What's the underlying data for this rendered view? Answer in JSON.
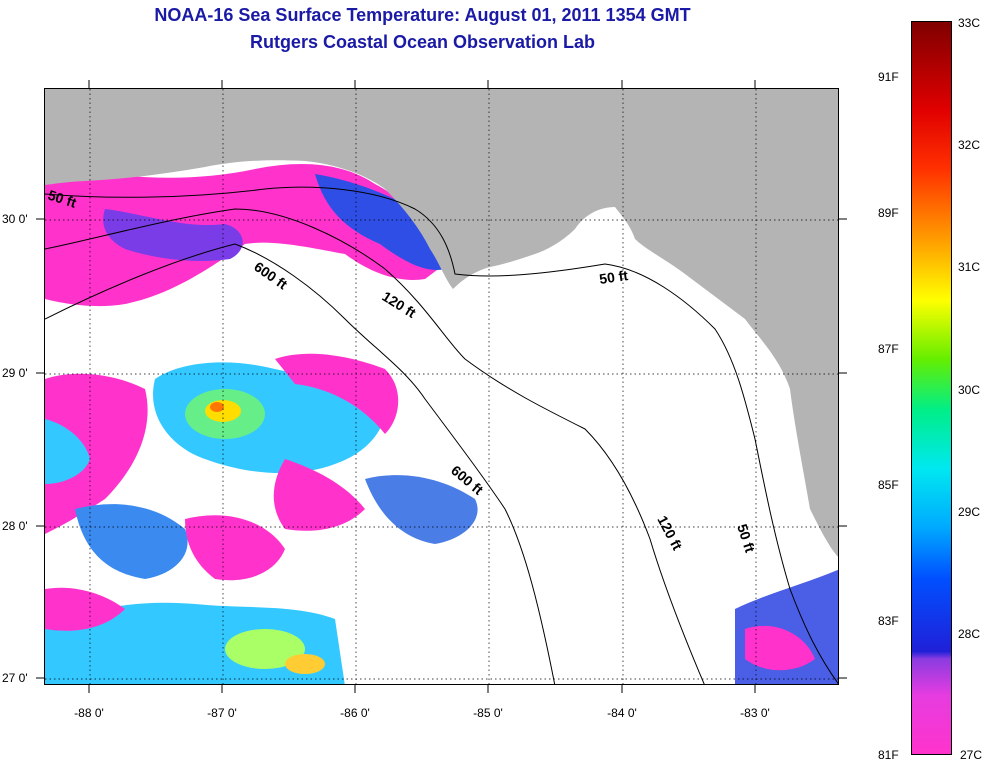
{
  "title": {
    "line1": "NOAA-16 Sea Surface Temperature:  August 01, 2011 1354 GMT",
    "line2": "Rutgers Coastal Ocean Observation Lab"
  },
  "map": {
    "lon_labels": [
      "-88 0'",
      "-87 0'",
      "-86 0'",
      "-85 0'",
      "-84 0'",
      "-83 0'"
    ],
    "lat_labels": [
      "30 0'",
      "29 0'",
      "28 0'",
      "27 0'"
    ],
    "contour_labels": [
      "50 ft",
      "600 ft",
      "120 ft",
      "50 ft",
      "600 ft",
      "120 ft",
      "50 ft"
    ],
    "colors": {
      "land": "#b4b4b4",
      "cloud": "#ffffff",
      "sst_27c": "#ff33cc",
      "sst_28c": "#2020d8",
      "sst_29c": "#00aaff",
      "sst_30c": "#00ee88",
      "sst_31c": "#ffff00"
    }
  },
  "colorbar": {
    "celsius_labels": [
      "33C",
      "32C",
      "31C",
      "30C",
      "29C",
      "28C"
    ],
    "fahrenheit_labels": [
      "91F",
      "89F",
      "87F",
      "85F",
      "83F"
    ],
    "bottom_celsius": "27C",
    "bottom_fahrenheit": "81F"
  }
}
